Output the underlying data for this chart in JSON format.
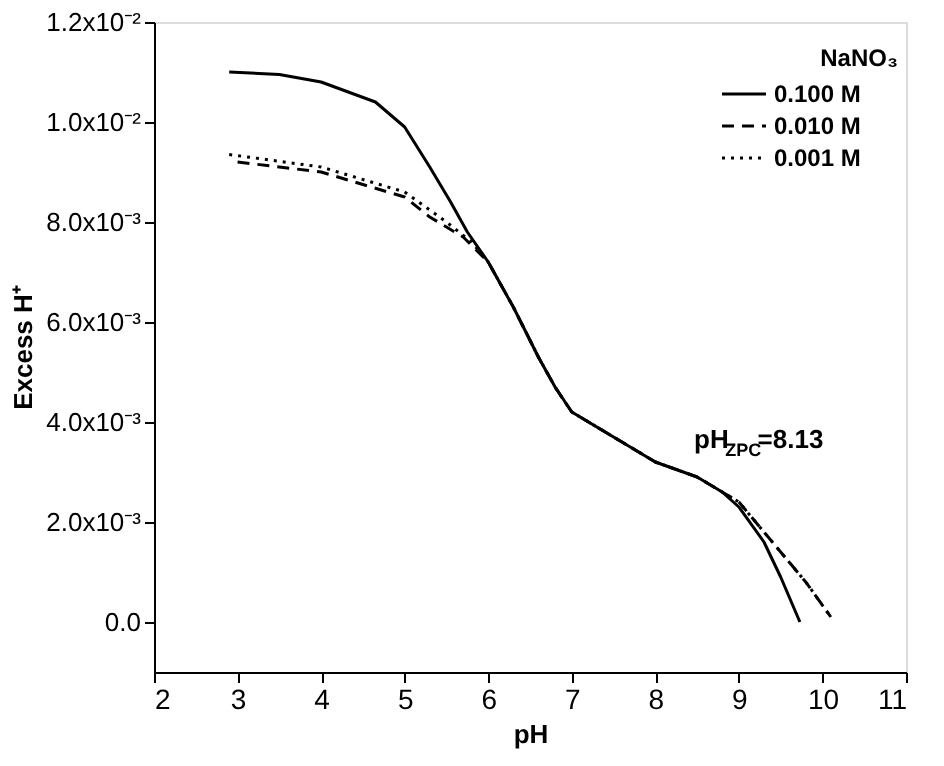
{
  "chart_data": {
    "type": "line",
    "xlabel": "pH",
    "ylabel": "Excess H⁺",
    "legend_title": "NaNO₃",
    "legend": "top right",
    "grid": false,
    "marker": "none",
    "xlim": [
      2,
      11
    ],
    "xticks": [
      2,
      3,
      4,
      5,
      6,
      7,
      8,
      9,
      10,
      11
    ],
    "ylim": [
      -0.001,
      0.012
    ],
    "yticks": [
      {
        "value": 0,
        "label": "0.0"
      },
      {
        "value": 0.002,
        "label": "2.0x10⁻³"
      },
      {
        "value": 0.004,
        "label": "4.0x10⁻³"
      },
      {
        "value": 0.006,
        "label": "6.0x10⁻³"
      },
      {
        "value": 0.008,
        "label": "8.0x10⁻³"
      },
      {
        "value": 0.01,
        "label": "1.0x10⁻²"
      },
      {
        "value": 0.012,
        "label": "1.2x10⁻²"
      }
    ],
    "annotations": [
      "pH$_{ZPC}$=8.13"
    ],
    "series": [
      {
        "name": "0.100 M",
        "color": "#000000",
        "line_style": "solid",
        "x": [
          2.9,
          3.5,
          4.0,
          4.65,
          5.0,
          5.3,
          5.55,
          5.75,
          6.0,
          6.3,
          6.6,
          6.8,
          7.0,
          7.5,
          8.0,
          8.5,
          8.8,
          9.0,
          9.3,
          9.5,
          9.73
        ],
        "values": [
          0.011,
          0.01095,
          0.0108,
          0.0104,
          0.0099,
          0.0091,
          0.0084,
          0.0078,
          0.0072,
          0.0063,
          0.0053,
          0.0047,
          0.0042,
          0.0037,
          0.0032,
          0.0029,
          0.0026,
          0.0023,
          0.0016,
          0.0009,
          0.0
        ]
      },
      {
        "name": "0.010 M",
        "color": "#000000",
        "line_style": "dashed",
        "x": [
          3.0,
          4.0,
          5.0,
          5.3,
          5.7,
          6.0,
          6.3,
          6.6,
          6.8,
          7.0,
          7.5,
          8.0,
          8.5,
          8.8,
          9.0,
          9.5,
          9.8,
          10.1
        ],
        "values": [
          0.0092,
          0.009,
          0.0085,
          0.0081,
          0.0077,
          0.0072,
          0.0063,
          0.0053,
          0.0047,
          0.0042,
          0.0037,
          0.0032,
          0.0029,
          0.0026,
          0.0024,
          0.0014,
          0.0008,
          0.0001
        ]
      },
      {
        "name": "0.001 M",
        "color": "#000000",
        "line_style": "dotted",
        "x": [
          2.9,
          4.0,
          5.0,
          5.5,
          5.8,
          6.0,
          6.3,
          6.6,
          6.8,
          7.0,
          7.5,
          8.0,
          8.5,
          8.8,
          9.0,
          9.5,
          9.8,
          10.1
        ],
        "values": [
          0.00935,
          0.0091,
          0.0086,
          0.008,
          0.0076,
          0.0072,
          0.0063,
          0.0053,
          0.0047,
          0.0042,
          0.0037,
          0.0032,
          0.0029,
          0.0026,
          0.0024,
          0.0014,
          0.0008,
          0.0001
        ]
      }
    ]
  }
}
